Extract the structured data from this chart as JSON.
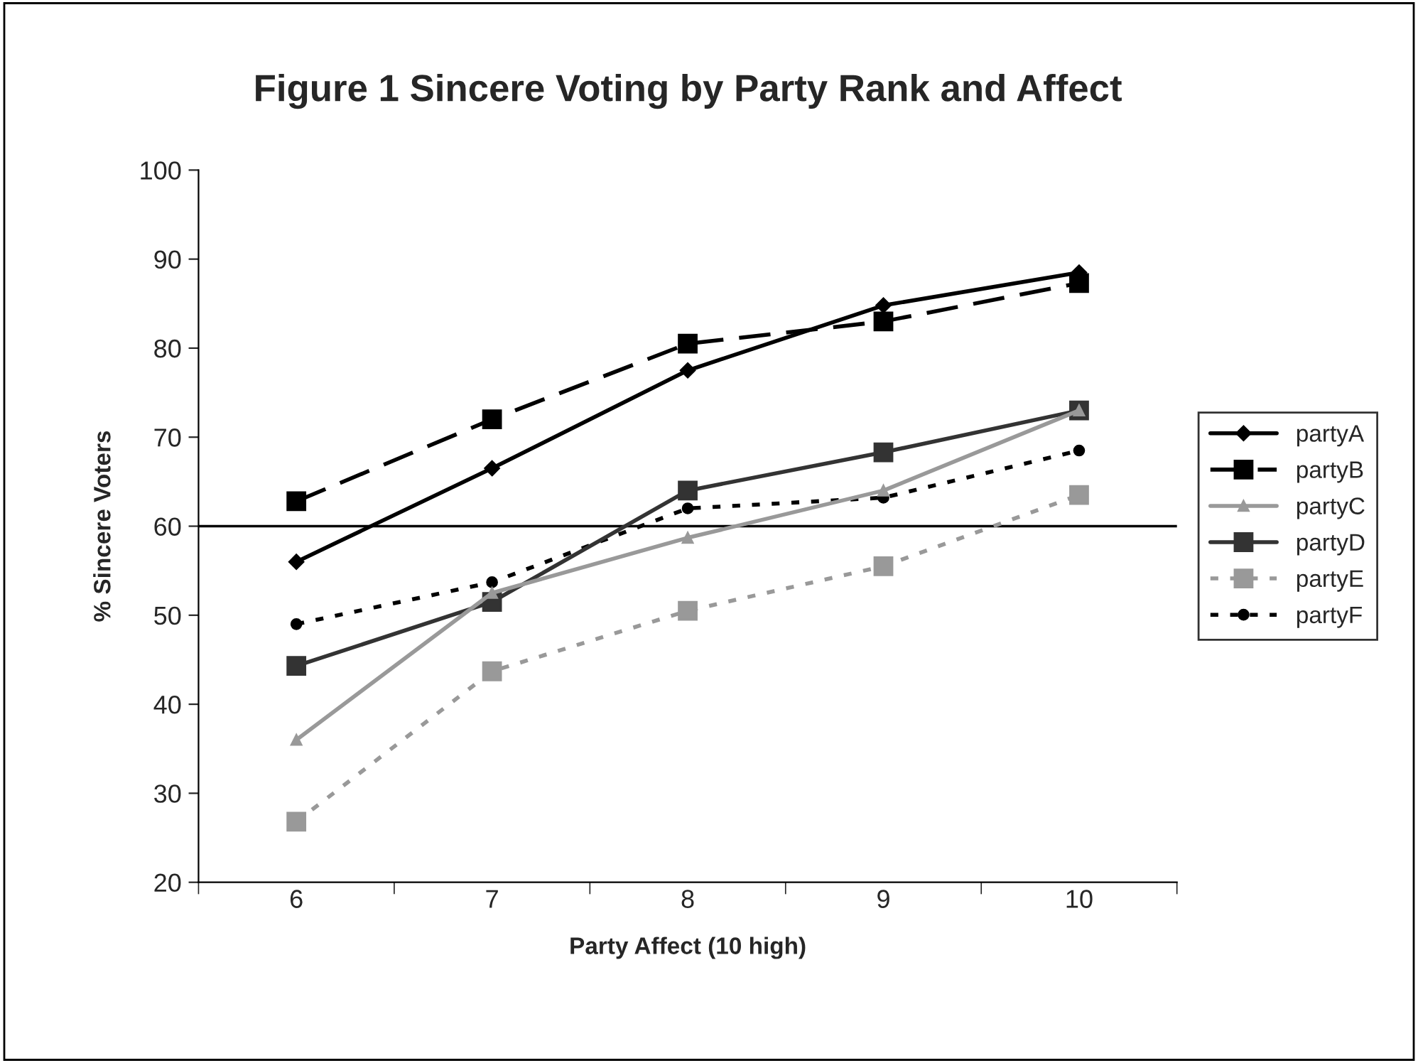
{
  "chart_data": {
    "type": "line",
    "title": "Figure 1 Sincere Voting by Party Rank and Affect",
    "xlabel": "Party Affect (10 high)",
    "ylabel": "% Sincere Voters",
    "categories": [
      "6",
      "7",
      "8",
      "9",
      "10"
    ],
    "series": [
      {
        "name": "partyA",
        "color": "#000000",
        "marker": "diamond",
        "line_style": "solid",
        "values": [
          56,
          66.5,
          77.5,
          84.8,
          88.5
        ]
      },
      {
        "name": "partyB",
        "color": "#000000",
        "marker": "square",
        "line_style": "dashed",
        "values": [
          62.8,
          72,
          80.5,
          83,
          87.3
        ]
      },
      {
        "name": "partyC",
        "color": "#999999",
        "marker": "triangle",
        "line_style": "solid",
        "values": [
          36,
          52.5,
          58.7,
          64,
          73
        ]
      },
      {
        "name": "partyD",
        "color": "#333333",
        "marker": "square",
        "line_style": "solid",
        "values": [
          44.3,
          51.5,
          64,
          68.3,
          73
        ]
      },
      {
        "name": "partyE",
        "color": "#999999",
        "marker": "square",
        "line_style": "dotted",
        "values": [
          26.8,
          43.7,
          50.5,
          55.5,
          63.5
        ]
      },
      {
        "name": "partyF",
        "color": "#000000",
        "marker": "circle",
        "line_style": "dotted",
        "values": [
          49,
          53.7,
          62,
          63.2,
          68.5
        ]
      }
    ],
    "ylim": [
      20,
      100
    ],
    "yticks": [
      20,
      30,
      40,
      50,
      60,
      70,
      80,
      90,
      100
    ],
    "ref_lines": [
      {
        "axis": "y",
        "value": 60,
        "color": "#000000",
        "line_style": "solid"
      }
    ],
    "grid": false,
    "legend": "right"
  }
}
